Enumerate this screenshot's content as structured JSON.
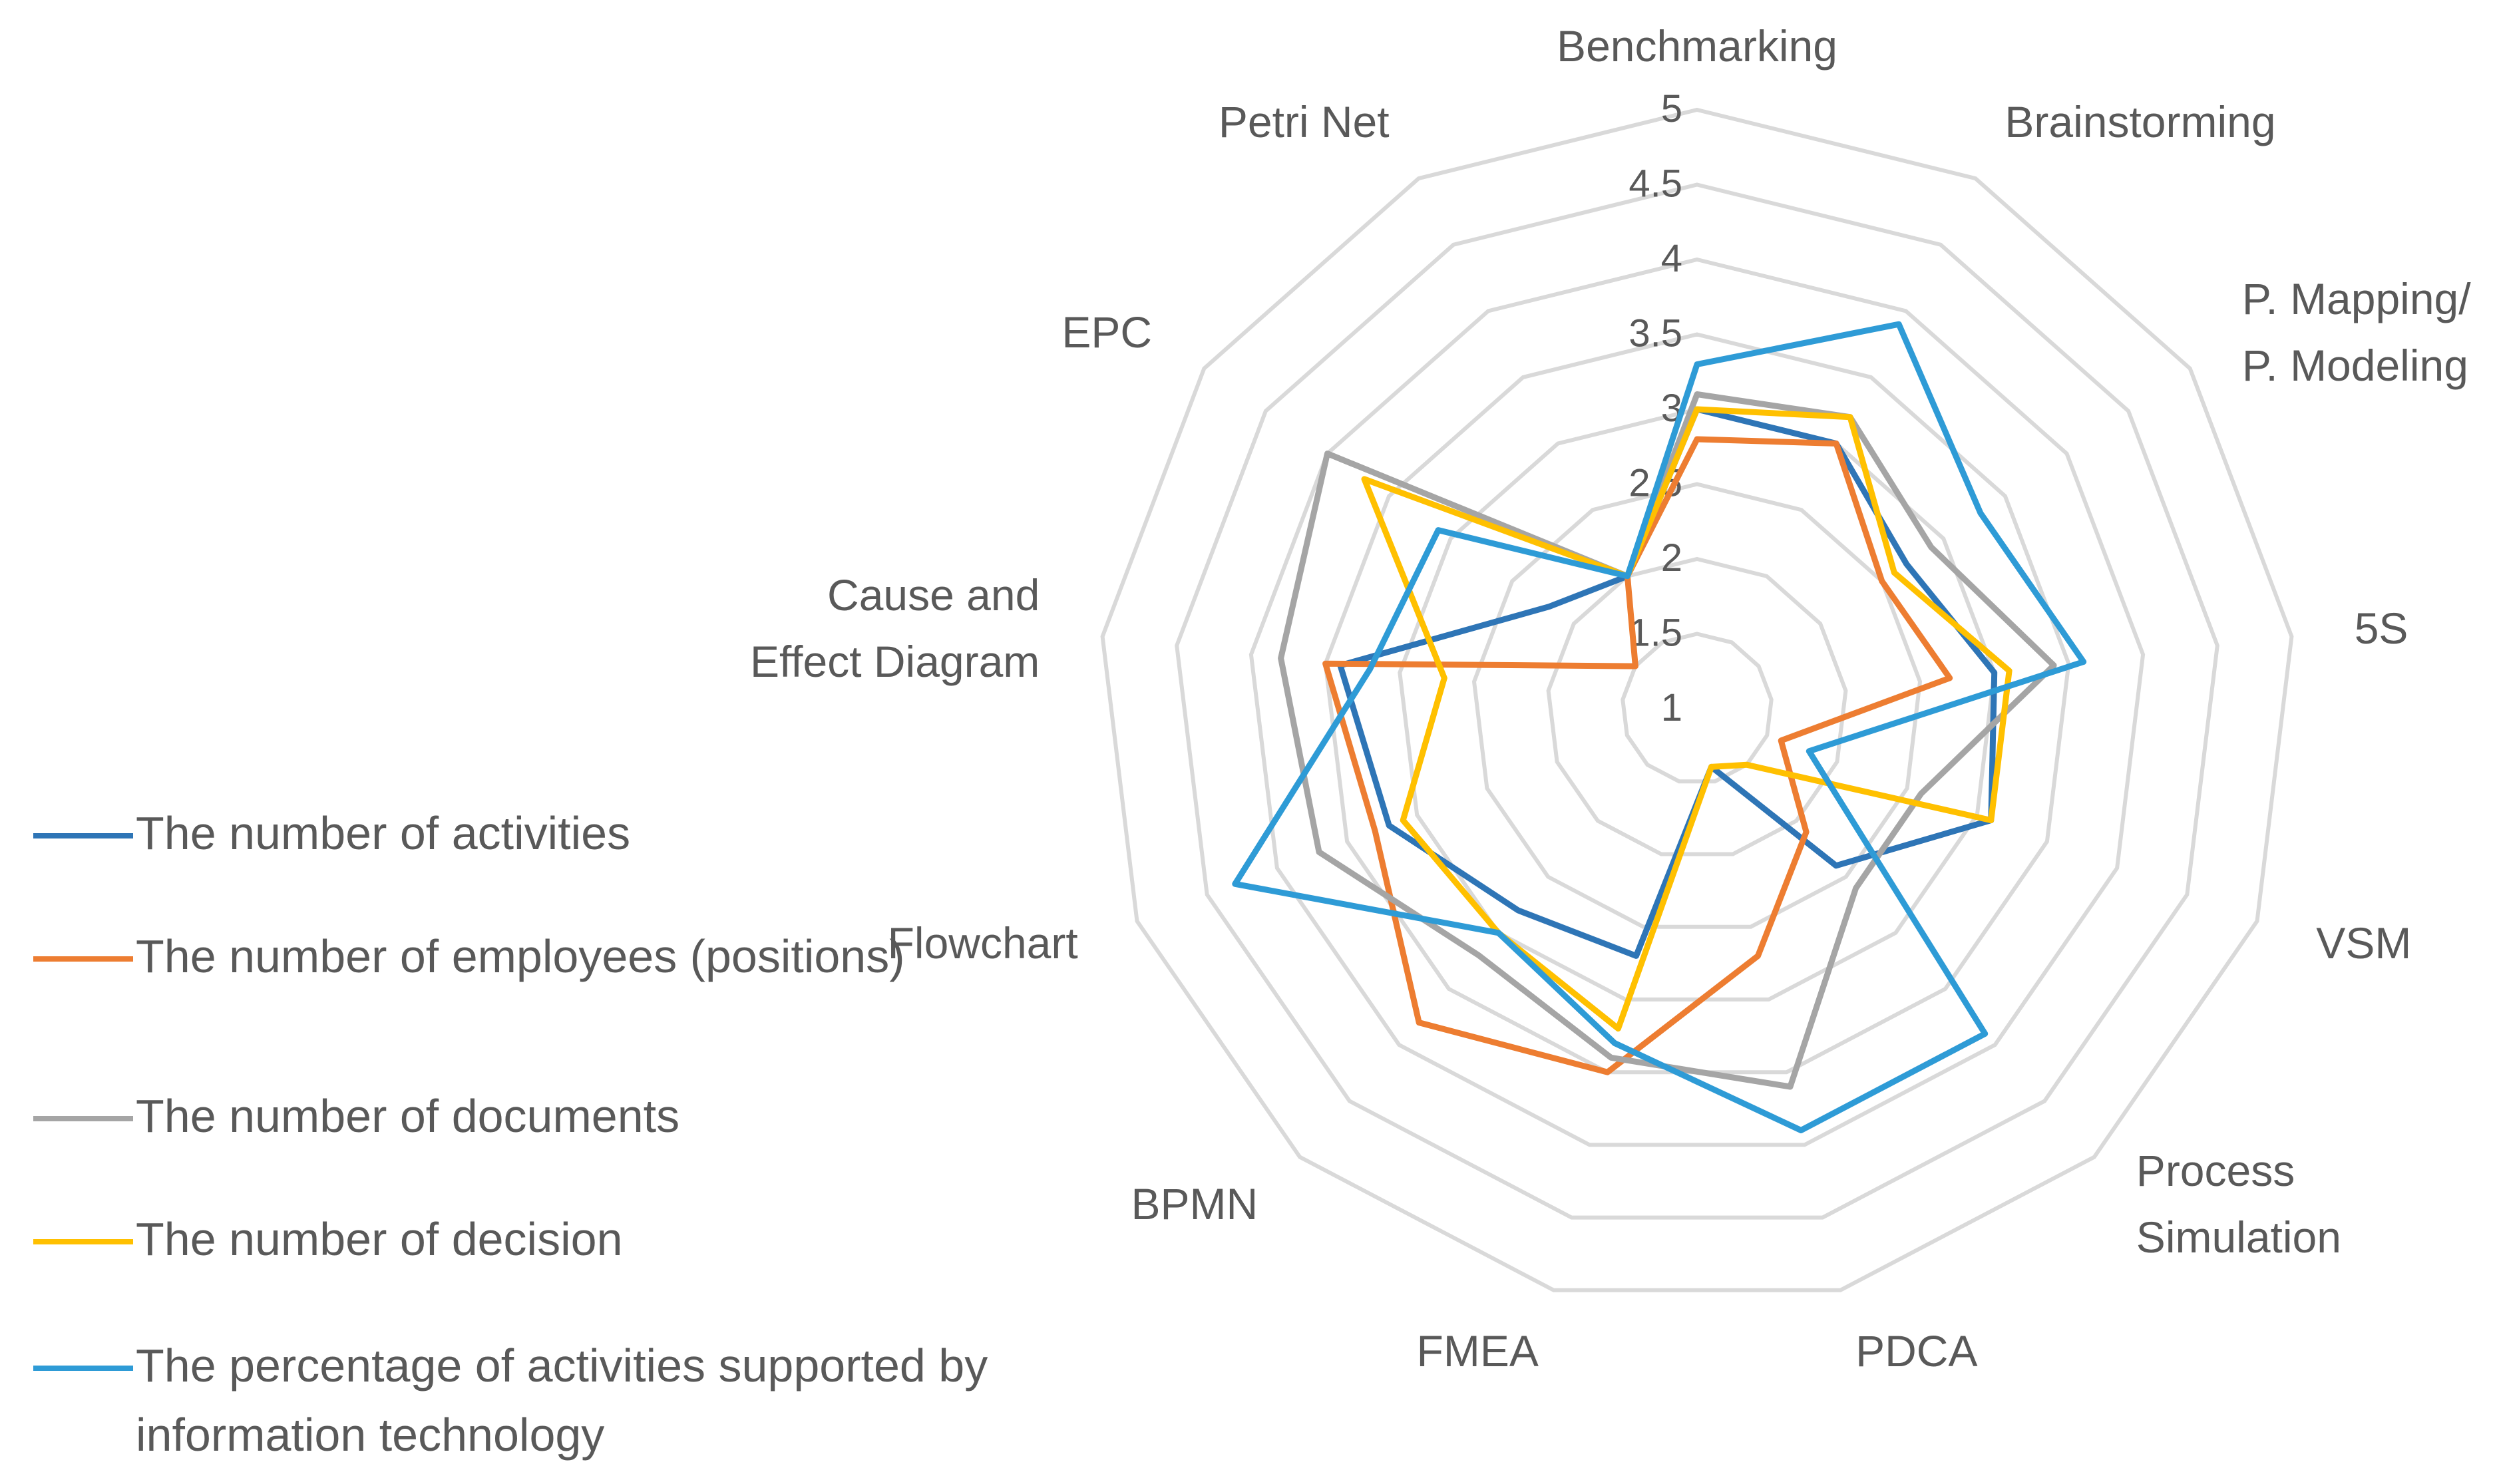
{
  "chart_data": {
    "type": "radar",
    "axes": [
      "Benchmarking",
      "Brainstorming",
      "P. Mapping/\nP. Modeling",
      "5S",
      "VSM",
      "Process\nSimulation",
      "PDCA",
      "FMEA",
      "BPMN",
      "Flowchart",
      "Cause and\nEffect Diagram",
      "EPC",
      "Petri Net"
    ],
    "rlim": [
      1,
      5
    ],
    "ticks": [
      "1",
      "1.5",
      "2",
      "2.5",
      "3",
      "3.5",
      "4",
      "4.5",
      "5"
    ],
    "series": [
      {
        "name": "The number of activities",
        "color": "#2E75B6",
        "values": [
          3.0,
          3.0,
          2.7,
          3.0,
          3.1,
          2.4,
          1.4,
          2.7,
          2.8,
          3.2,
          3.4,
          2.2,
          2.0
        ]
      },
      {
        "name": "The number of employees (positions)",
        "color": "#ED7D31",
        "values": [
          2.8,
          3.0,
          2.5,
          2.7,
          1.6,
          2.1,
          2.7,
          3.5,
          3.8,
          3.3,
          3.5,
          1.5,
          2.0
        ]
      },
      {
        "name": "The number of documents",
        "color": "#A5A5A5",
        "values": [
          3.1,
          3.2,
          2.9,
          3.4,
          2.6,
          2.6,
          3.6,
          3.4,
          3.2,
          3.7,
          3.8,
          4.0,
          2.0
        ]
      },
      {
        "name": "The number of decision",
        "color": "#FFC000",
        "values": [
          3.0,
          3.2,
          2.6,
          3.1,
          3.1,
          1.5,
          1.4,
          3.2,
          3.0,
          3.1,
          2.7,
          3.7,
          2.0
        ]
      },
      {
        "name": "The percentage of activities supported by information technology",
        "color": "#2E9BD6",
        "values": [
          3.3,
          3.9,
          3.3,
          3.6,
          1.8,
          3.9,
          3.9,
          3.3,
          3.0,
          4.3,
          3.2,
          3.1,
          2.0
        ]
      }
    ]
  }
}
